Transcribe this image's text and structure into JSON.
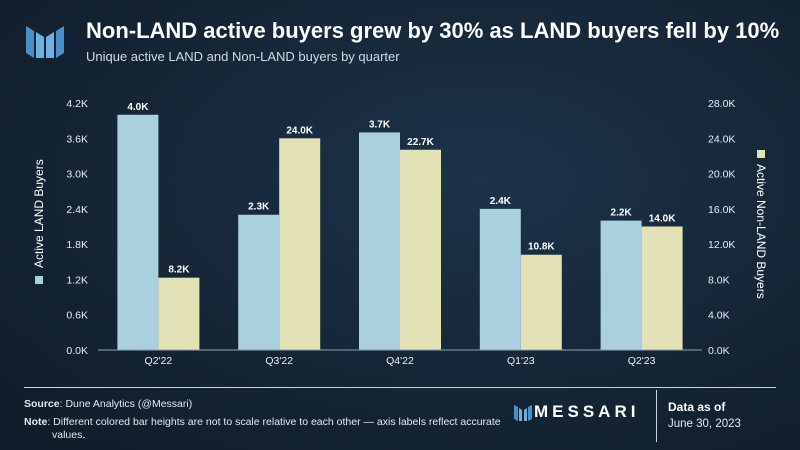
{
  "header": {
    "title": "Non-LAND active buyers grew by 30% as LAND buyers fell by 10%",
    "subtitle": "Unique active LAND and Non-LAND buyers by quarter"
  },
  "chart_data": {
    "type": "bar",
    "categories": [
      "Q2'22",
      "Q3'22",
      "Q4'22",
      "Q1'23",
      "Q2'23"
    ],
    "series": [
      {
        "name": "Active LAND Buyers",
        "axis": "left",
        "color": "#aacfdd",
        "values": [
          4000,
          2300,
          3700,
          2400,
          2200
        ],
        "labels": [
          "4.0K",
          "2.3K",
          "3.7K",
          "2.4K",
          "2.2K"
        ]
      },
      {
        "name": "Active Non-LAND Buyers",
        "axis": "right",
        "color": "#e2e2b6",
        "values": [
          8200,
          24000,
          22700,
          10800,
          14000
        ],
        "labels": [
          "8.2K",
          "24.0K",
          "22.7K",
          "10.8K",
          "14.0K"
        ]
      }
    ],
    "y_left": {
      "label": "Active LAND Buyers",
      "range": [
        0,
        4200
      ],
      "ticks": [
        "0.0K",
        "0.6K",
        "1.2K",
        "1.8K",
        "2.4K",
        "3.0K",
        "3.6K",
        "4.2K"
      ]
    },
    "y_right": {
      "label": "Active Non-LAND Buyers",
      "range": [
        0,
        28000
      ],
      "ticks": [
        "0.0K",
        "4.0K",
        "8.0K",
        "12.0K",
        "16.0K",
        "20.0K",
        "24.0K",
        "28.0K"
      ]
    },
    "grid": false
  },
  "footer": {
    "source_label": "Source",
    "source_text": ": Dune Analytics (@Messari)",
    "note_label": "Note",
    "note_text": ": Different colored bar heights are not to scale relative to each other — axis labels reflect accurate values.",
    "brand": "MESSARI",
    "data_as_of_label": "Data as of",
    "date": "June 30, 2023"
  }
}
